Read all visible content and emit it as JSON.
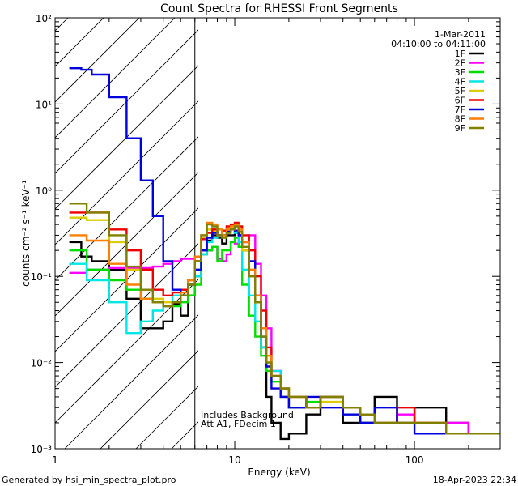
{
  "chart_data": {
    "type": "line",
    "title": "Count Spectra for RHESSI Front Segments",
    "xlabel": "Energy (keV)",
    "ylabel": "counts cm⁻² s⁻¹ keV⁻¹",
    "x_scale": "log",
    "y_scale": "log",
    "xlim": [
      1,
      300
    ],
    "ylim": [
      0.001,
      100
    ],
    "x_ticks": [
      "1",
      "10",
      "100"
    ],
    "y_ticks": [
      "10⁻³",
      "10⁻²",
      "10⁻¹",
      "10⁰",
      "10¹",
      "10²"
    ],
    "date": "1-Mar-2011",
    "time_range": "04:10:00 to 04:11:00",
    "annotation_lines": [
      "Includes Background",
      "Att A1, FDecim 1"
    ],
    "attenuator_cutoff_keV": 6,
    "legend_position": "top-right",
    "footer_left": "Generated by hsi_min_spectra_plot.pro",
    "footer_right": "18-Apr-2023 22:34",
    "series": [
      {
        "name": "1F",
        "color": "#000000",
        "x": [
          1.2,
          1.4,
          1.6,
          2.0,
          2.5,
          3.0,
          3.5,
          4.0,
          4.5,
          5.0,
          5.5,
          6.0,
          6.5,
          7.0,
          7.5,
          8.0,
          8.5,
          9.0,
          9.5,
          10.0,
          10.5,
          11.0,
          12.0,
          13.0,
          14.0,
          15.0,
          16.0,
          18.0,
          20.0,
          25.0,
          30.0,
          40.0,
          50.0,
          60.0,
          80.0,
          100.0,
          150.0,
          200.0,
          270.0
        ],
        "y": [
          0.25,
          0.17,
          0.15,
          0.12,
          0.055,
          0.025,
          0.025,
          0.03,
          0.048,
          0.035,
          0.06,
          0.1,
          0.2,
          0.26,
          0.3,
          0.28,
          0.24,
          0.3,
          0.3,
          0.32,
          0.3,
          0.2,
          0.1,
          0.05,
          0.015,
          0.004,
          0.002,
          0.0013,
          0.0015,
          0.0025,
          0.004,
          0.002,
          0.002,
          0.004,
          0.002,
          0.003,
          0.002,
          0.0015,
          0.0015
        ]
      },
      {
        "name": "2F",
        "color": "#ff00ff",
        "x": [
          1.2,
          1.5,
          2.0,
          2.5,
          3.0,
          3.5,
          4.0,
          4.5,
          5.0,
          5.5,
          6.0,
          6.5,
          7.0,
          7.5,
          8.0,
          8.5,
          9.0,
          9.5,
          10.0,
          10.5,
          11.0,
          12.0,
          13.0,
          14.0,
          15.0,
          16.0,
          18.0,
          20.0,
          25.0,
          30.0,
          40.0,
          50.0,
          60.0,
          80.0,
          100.0,
          150.0,
          200.0,
          270.0
        ],
        "y": [
          0.11,
          0.12,
          0.125,
          0.125,
          0.125,
          0.13,
          0.14,
          0.15,
          0.16,
          0.16,
          0.17,
          0.18,
          0.2,
          0.22,
          0.16,
          0.15,
          0.18,
          0.25,
          0.24,
          0.3,
          0.25,
          0.3,
          0.14,
          0.06,
          0.025,
          0.008,
          0.004,
          0.003,
          0.003,
          0.004,
          0.003,
          0.0025,
          0.002,
          0.0025,
          0.002,
          0.002,
          0.0015,
          0.0015
        ]
      },
      {
        "name": "3F",
        "color": "#00dd00",
        "x": [
          1.2,
          1.5,
          2.0,
          2.5,
          3.0,
          3.5,
          4.0,
          4.5,
          5.0,
          5.5,
          6.0,
          6.5,
          7.0,
          7.5,
          8.0,
          8.5,
          9.0,
          9.5,
          10.0,
          10.5,
          11.0,
          12.0,
          13.0,
          14.0,
          15.0,
          16.0,
          18.0,
          20.0,
          25.0,
          30.0,
          40.0,
          50.0,
          60.0,
          80.0,
          100.0,
          150.0,
          200.0,
          270.0
        ],
        "y": [
          0.2,
          0.12,
          0.09,
          0.07,
          0.055,
          0.05,
          0.045,
          0.045,
          0.05,
          0.06,
          0.08,
          0.18,
          0.2,
          0.22,
          0.15,
          0.2,
          0.2,
          0.25,
          0.28,
          0.22,
          0.08,
          0.035,
          0.02,
          0.012,
          0.008,
          0.006,
          0.004,
          0.003,
          0.0035,
          0.004,
          0.003,
          0.002,
          0.002,
          0.002,
          0.002,
          0.0015,
          0.0015,
          0.0015
        ]
      },
      {
        "name": "4F",
        "color": "#00e5e5",
        "x": [
          1.2,
          1.5,
          2.0,
          2.5,
          3.0,
          3.5,
          4.0,
          4.5,
          5.0,
          5.5,
          6.0,
          6.5,
          7.0,
          7.5,
          8.0,
          8.5,
          9.0,
          9.5,
          10.0,
          10.5,
          11.0,
          12.0,
          13.0,
          14.0,
          15.0,
          16.0,
          18.0,
          20.0,
          25.0,
          30.0,
          40.0,
          50.0,
          60.0,
          80.0,
          100.0,
          150.0,
          200.0,
          270.0
        ],
        "y": [
          0.14,
          0.09,
          0.05,
          0.022,
          0.03,
          0.04,
          0.045,
          0.06,
          0.07,
          0.08,
          0.1,
          0.18,
          0.25,
          0.28,
          0.3,
          0.3,
          0.32,
          0.35,
          0.32,
          0.25,
          0.12,
          0.06,
          0.03,
          0.015,
          0.01,
          0.008,
          0.005,
          0.004,
          0.003,
          0.004,
          0.003,
          0.0025,
          0.002,
          0.002,
          0.002,
          0.0015,
          0.0015,
          0.0015
        ]
      },
      {
        "name": "5F",
        "color": "#ddcc00",
        "x": [
          1.2,
          1.5,
          2.0,
          2.5,
          3.0,
          3.5,
          4.0,
          4.5,
          5.0,
          5.5,
          6.0,
          6.5,
          7.0,
          7.5,
          8.0,
          8.5,
          9.0,
          9.5,
          10.0,
          10.5,
          11.0,
          12.0,
          13.0,
          14.0,
          15.0,
          16.0,
          18.0,
          20.0,
          25.0,
          30.0,
          40.0,
          50.0,
          60.0,
          80.0,
          100.0,
          150.0,
          200.0,
          270.0
        ],
        "y": [
          0.48,
          0.45,
          0.25,
          0.12,
          0.07,
          0.055,
          0.05,
          0.05,
          0.06,
          0.08,
          0.15,
          0.28,
          0.35,
          0.33,
          0.35,
          0.3,
          0.35,
          0.38,
          0.4,
          0.32,
          0.2,
          0.1,
          0.05,
          0.025,
          0.012,
          0.007,
          0.005,
          0.004,
          0.003,
          0.0035,
          0.003,
          0.0025,
          0.002,
          0.002,
          0.002,
          0.0015,
          0.0015,
          0.0015
        ]
      },
      {
        "name": "6F",
        "color": "#ee0000",
        "x": [
          1.2,
          1.5,
          2.0,
          2.5,
          3.0,
          3.5,
          4.0,
          4.5,
          5.0,
          5.5,
          6.0,
          6.5,
          7.0,
          7.5,
          8.0,
          8.5,
          9.0,
          9.5,
          10.0,
          10.5,
          11.0,
          12.0,
          13.0,
          14.0,
          15.0,
          16.0,
          18.0,
          20.0,
          25.0,
          30.0,
          40.0,
          50.0,
          60.0,
          80.0,
          100.0,
          150.0,
          200.0,
          270.0
        ],
        "y": [
          0.55,
          0.55,
          0.35,
          0.2,
          0.12,
          0.07,
          0.06,
          0.065,
          0.07,
          0.09,
          0.15,
          0.27,
          0.32,
          0.35,
          0.3,
          0.34,
          0.38,
          0.4,
          0.42,
          0.38,
          0.3,
          0.2,
          0.1,
          0.04,
          0.015,
          0.007,
          0.005,
          0.004,
          0.003,
          0.004,
          0.003,
          0.0025,
          0.002,
          0.003,
          0.002,
          0.0015,
          0.0015,
          0.0015
        ]
      },
      {
        "name": "7F",
        "color": "#0000dd",
        "x": [
          1.2,
          1.4,
          1.6,
          2.0,
          2.5,
          3.0,
          3.5,
          4.0,
          4.5,
          5.0,
          5.5,
          6.0,
          6.5,
          7.0,
          7.5,
          8.0,
          8.5,
          9.0,
          9.5,
          10.0,
          10.5,
          11.0,
          12.0,
          13.0,
          14.0,
          15.0,
          16.0,
          18.0,
          20.0,
          25.0,
          30.0,
          40.0,
          50.0,
          60.0,
          80.0,
          100.0,
          150.0,
          200.0,
          270.0
        ],
        "y": [
          26,
          25,
          22,
          12,
          4,
          1.3,
          0.5,
          0.15,
          0.07,
          0.06,
          0.08,
          0.12,
          0.2,
          0.28,
          0.32,
          0.3,
          0.3,
          0.33,
          0.35,
          0.34,
          0.3,
          0.25,
          0.15,
          0.06,
          0.02,
          0.009,
          0.005,
          0.004,
          0.003,
          0.004,
          0.003,
          0.0025,
          0.002,
          0.003,
          0.002,
          0.0015,
          0.0015,
          0.0015,
          0.0015
        ]
      },
      {
        "name": "8F",
        "color": "#ff7f00",
        "x": [
          1.2,
          1.5,
          2.0,
          2.5,
          3.0,
          3.5,
          4.0,
          4.5,
          5.0,
          5.5,
          6.0,
          6.5,
          7.0,
          7.5,
          8.0,
          8.5,
          9.0,
          9.5,
          10.0,
          10.5,
          11.0,
          12.0,
          13.0,
          14.0,
          15.0,
          16.0,
          18.0,
          20.0,
          25.0,
          30.0,
          40.0,
          50.0,
          60.0,
          80.0,
          100.0,
          150.0,
          200.0,
          270.0
        ],
        "y": [
          0.3,
          0.26,
          0.14,
          0.08,
          0.055,
          0.05,
          0.045,
          0.05,
          0.065,
          0.09,
          0.17,
          0.3,
          0.42,
          0.4,
          0.35,
          0.3,
          0.35,
          0.38,
          0.4,
          0.35,
          0.25,
          0.12,
          0.06,
          0.025,
          0.012,
          0.007,
          0.005,
          0.004,
          0.003,
          0.004,
          0.003,
          0.0025,
          0.002,
          0.002,
          0.002,
          0.0015,
          0.0015,
          0.0015
        ]
      },
      {
        "name": "9F",
        "color": "#808000",
        "x": [
          1.2,
          1.5,
          2.0,
          2.5,
          3.0,
          3.5,
          4.0,
          4.5,
          5.0,
          5.5,
          6.0,
          6.5,
          7.0,
          7.5,
          8.0,
          8.5,
          9.0,
          9.5,
          10.0,
          10.5,
          11.0,
          12.0,
          13.0,
          14.0,
          15.0,
          16.0,
          18.0,
          20.0,
          25.0,
          30.0,
          40.0,
          50.0,
          60.0,
          80.0,
          100.0,
          150.0,
          200.0,
          270.0
        ],
        "y": [
          0.7,
          0.55,
          0.3,
          0.13,
          0.07,
          0.05,
          0.045,
          0.05,
          0.06,
          0.08,
          0.15,
          0.3,
          0.4,
          0.38,
          0.3,
          0.28,
          0.32,
          0.35,
          0.38,
          0.33,
          0.22,
          0.1,
          0.05,
          0.02,
          0.01,
          0.007,
          0.005,
          0.004,
          0.003,
          0.004,
          0.003,
          0.0025,
          0.002,
          0.002,
          0.002,
          0.0015,
          0.0015,
          0.0015
        ]
      }
    ]
  }
}
